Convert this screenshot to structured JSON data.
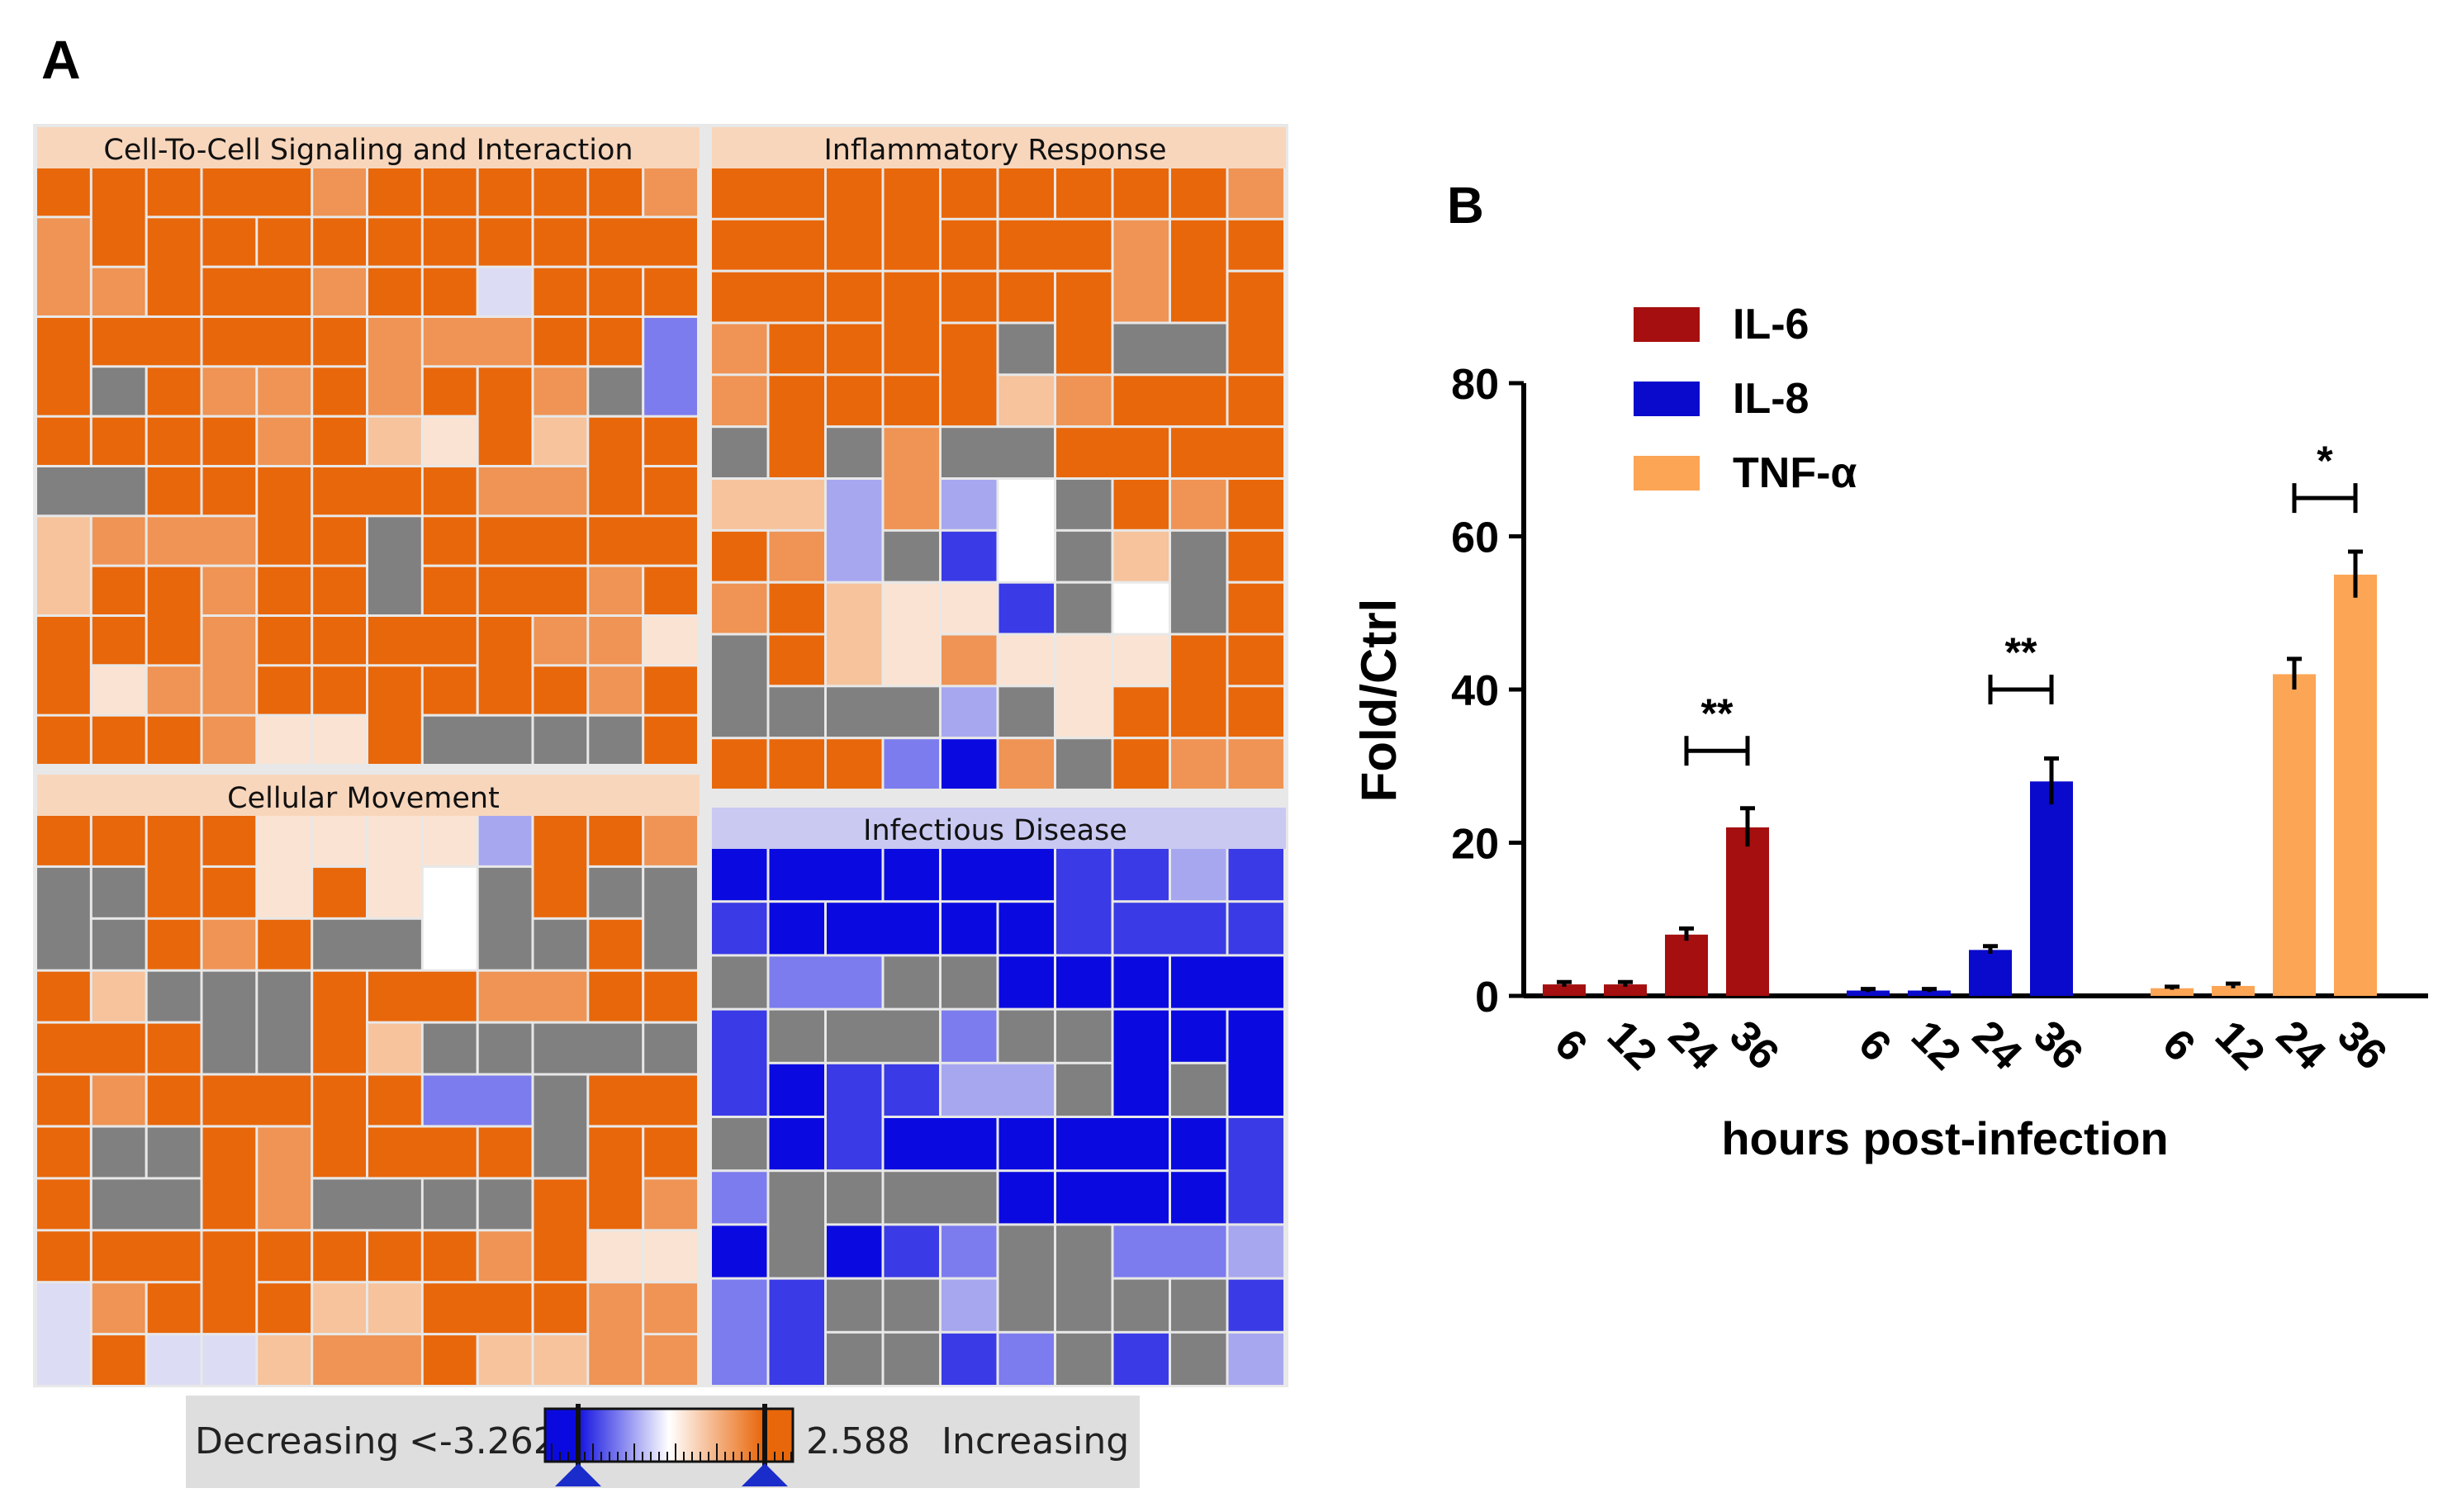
{
  "panel_a": {
    "label": "A",
    "treemap": {
      "categories": [
        {
          "name": "Cell-To-Cell Signaling and Interaction"
        },
        {
          "name": "Inflammatory Response"
        },
        {
          "name": "Cellular Movement"
        },
        {
          "name": "Infectious Disease"
        }
      ],
      "colors": {
        "increase_strong": "#E8670B",
        "increase_mid": "#EF9454",
        "increase_light": "#F6C39C",
        "increase_pale": "#FAE3D2",
        "neutral_white": "#FFFFFF",
        "no_value": "#808080",
        "decrease_pale": "#DCDCF5",
        "decrease_light": "#A7A7F0",
        "decrease_mid": "#7C7CEE",
        "decrease_strong": "#3A3AE6",
        "decrease_full": "#0A0AE0",
        "header_increase": "#F8D6BC",
        "header_decrease": "#C9C9F2"
      }
    },
    "color_scale": {
      "left_label": "Decreasing",
      "min_label": "<-3.262",
      "max_label": "2.588",
      "right_label": "Increasing"
    }
  },
  "panel_b": {
    "label": "B"
  },
  "chart_data": {
    "type": "bar",
    "title": "",
    "xlabel": "hours post-infection",
    "ylabel": "Fold/Ctrl",
    "ylim": [
      0,
      80
    ],
    "yticks": [
      0,
      20,
      40,
      60,
      80
    ],
    "ytick_labels": [
      "0",
      "20",
      "40",
      "60",
      "80"
    ],
    "groups": [
      {
        "name": "IL-6",
        "color": "#A50F0F",
        "x_labels": [
          "6",
          "12",
          "24",
          "36"
        ],
        "values": [
          1.5,
          1.5,
          8,
          22
        ],
        "errors": [
          0.3,
          0.3,
          0.8,
          2.5
        ]
      },
      {
        "name": "IL-8",
        "color": "#0A0ACC",
        "x_labels": [
          "6",
          "12",
          "24",
          "36"
        ],
        "values": [
          0.7,
          0.7,
          6,
          28
        ],
        "errors": [
          0.2,
          0.2,
          0.5,
          3
        ]
      },
      {
        "name": "TNF-α",
        "color": "#FBA555",
        "x_labels": [
          "6",
          "12",
          "24",
          "36"
        ],
        "values": [
          1,
          1.3,
          42,
          55
        ],
        "errors": [
          0.2,
          0.3,
          2,
          3
        ]
      }
    ],
    "legend": [
      "IL-6",
      "IL-8",
      "TNF-α"
    ],
    "legend_position": "top-left",
    "annotations": [
      {
        "text": "**",
        "group": "IL-6",
        "between": [
          "24",
          "36"
        ],
        "level": 32
      },
      {
        "text": "**",
        "group": "IL-8",
        "between": [
          "24",
          "36"
        ],
        "level": 40
      },
      {
        "text": "*",
        "group": "TNF-α",
        "between": [
          "24",
          "36"
        ],
        "level": 65
      }
    ]
  }
}
